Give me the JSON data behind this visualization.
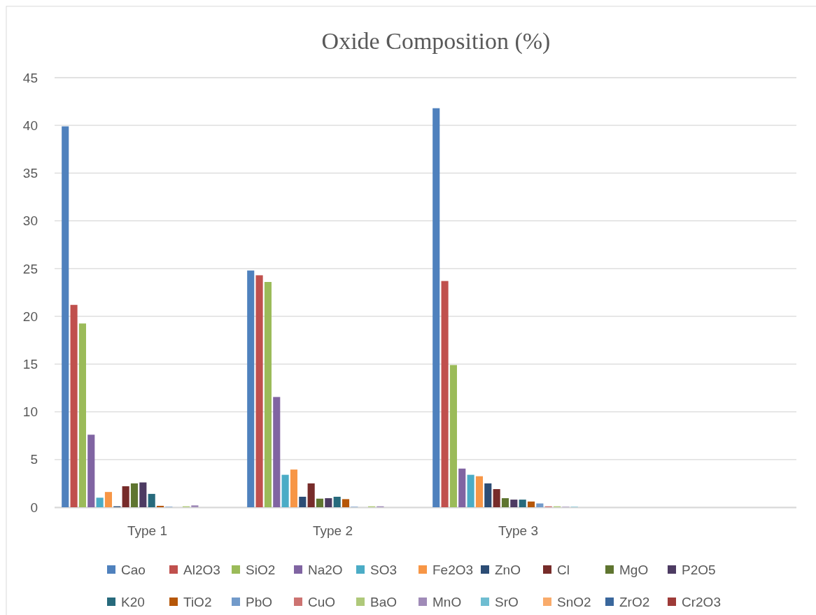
{
  "chart_data": {
    "type": "bar",
    "title": "Oxide Composition (%)",
    "categories": [
      "Type 1",
      "Type 2",
      "Type 3",
      null
    ],
    "series": [
      {
        "name": "Cao",
        "color": "#4f81bd",
        "values": [
          39.9,
          24.8,
          41.8,
          null
        ]
      },
      {
        "name": "Al2O3",
        "color": "#c0504d",
        "values": [
          21.2,
          24.3,
          23.7,
          null
        ]
      },
      {
        "name": "SiO2",
        "color": "#9bbb59",
        "values": [
          19.25,
          23.6,
          14.9,
          null
        ]
      },
      {
        "name": "Na2O",
        "color": "#8064a2",
        "values": [
          7.6,
          11.55,
          4.05,
          null
        ]
      },
      {
        "name": "SO3",
        "color": "#4bacc6",
        "values": [
          1.0,
          3.4,
          3.4,
          null
        ]
      },
      {
        "name": "Fe2O3",
        "color": "#f79646",
        "values": [
          1.6,
          3.95,
          3.25,
          null
        ]
      },
      {
        "name": "ZnO",
        "color": "#2c4d75",
        "values": [
          0.1,
          1.1,
          2.5,
          null
        ]
      },
      {
        "name": "Cl",
        "color": "#772c2a",
        "values": [
          2.2,
          2.5,
          1.9,
          null
        ]
      },
      {
        "name": "MgO",
        "color": "#5f7530",
        "values": [
          2.5,
          0.9,
          0.95,
          null
        ]
      },
      {
        "name": "P2O5",
        "color": "#4d3b62",
        "values": [
          2.6,
          0.95,
          0.8,
          null
        ]
      },
      {
        "name": "K20",
        "color": "#276a7c",
        "values": [
          1.4,
          1.1,
          0.8,
          null
        ]
      },
      {
        "name": "TiO2",
        "color": "#b65708",
        "values": [
          0.15,
          0.85,
          0.6,
          null
        ]
      },
      {
        "name": "PbO",
        "color": "#729aca",
        "values": [
          0.05,
          0.05,
          0.4,
          null
        ]
      },
      {
        "name": "CuO",
        "color": "#cd7371",
        "values": [
          0,
          0,
          0.1,
          null
        ]
      },
      {
        "name": "BaO",
        "color": "#afc97a",
        "values": [
          0.1,
          0.1,
          0.1,
          null
        ]
      },
      {
        "name": "MnO",
        "color": "#a08bb8",
        "values": [
          0.2,
          0.1,
          0.05,
          null
        ]
      },
      {
        "name": "SrO",
        "color": "#6fbdd1",
        "values": [
          0,
          0,
          0.05,
          null
        ]
      },
      {
        "name": "SnO2",
        "color": "#f9ab6b",
        "values": [
          0,
          0,
          0,
          null
        ]
      },
      {
        "name": "ZrO2",
        "color": "#3a679c",
        "values": [
          0,
          0,
          0,
          null
        ]
      },
      {
        "name": "Cr2O3",
        "color": "#9e3b38",
        "values": [
          0,
          0,
          0,
          null
        ]
      }
    ],
    "ylim": [
      0,
      45
    ],
    "yticks": [
      0,
      5,
      10,
      15,
      20,
      25,
      30,
      35,
      40,
      45
    ],
    "grid": "y",
    "legend": "bottom"
  }
}
